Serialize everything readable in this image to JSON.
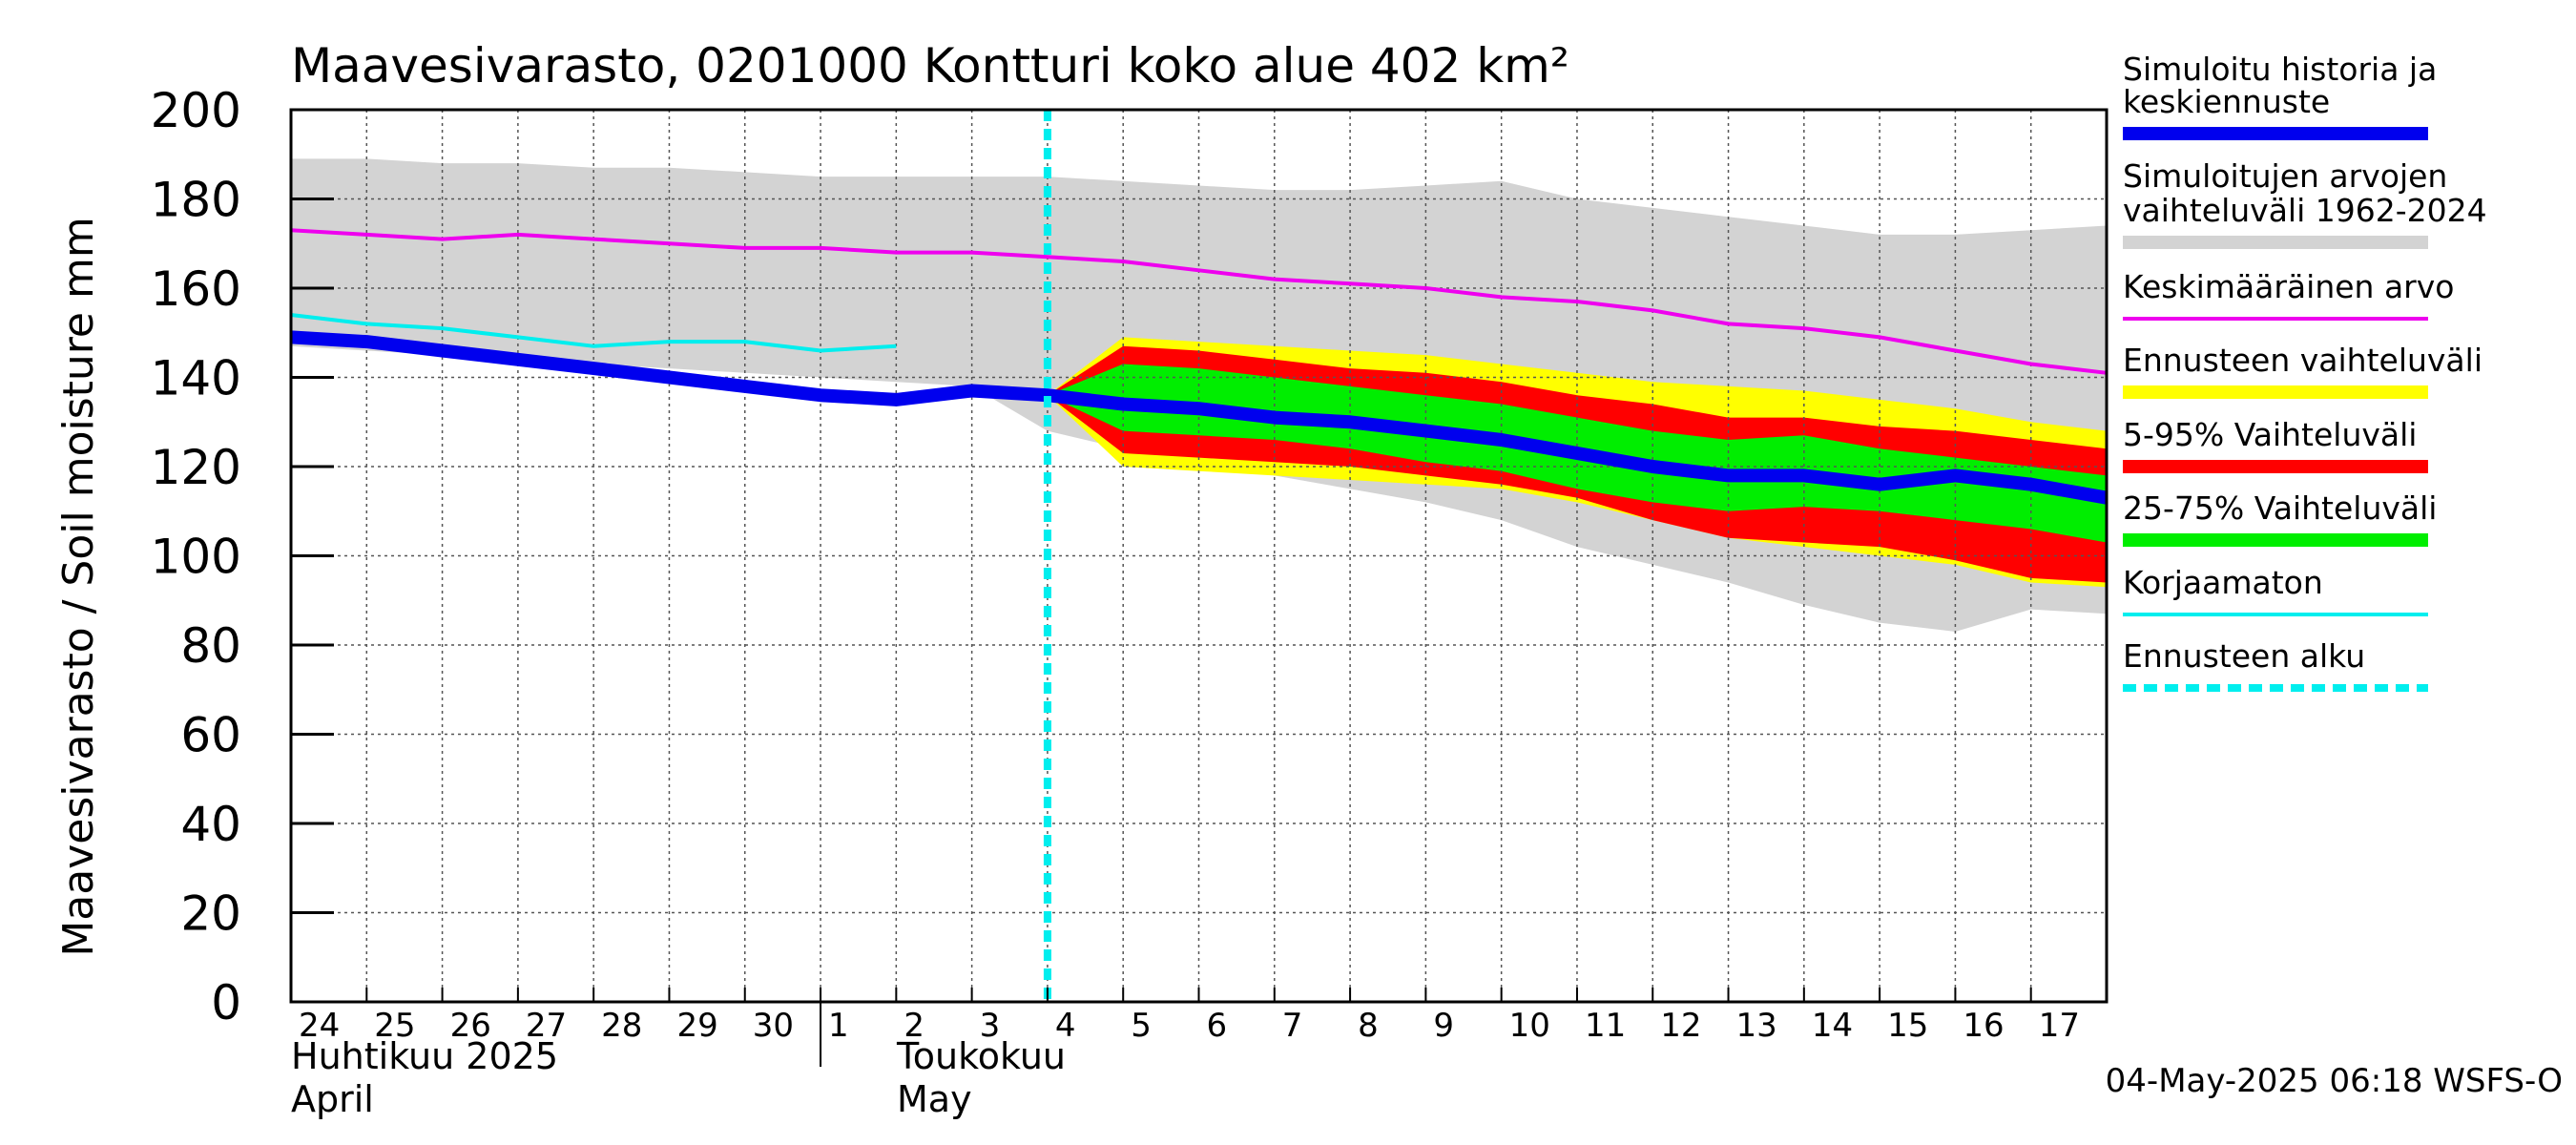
{
  "chart_data": {
    "type": "area",
    "title": "Maavesivarasto, 0201000 Kontturi koko alue 402 km²",
    "ylabel": "Maavesivarasto / Soil moisture   mm",
    "ylim": [
      0,
      200
    ],
    "y_ticks": [
      0,
      20,
      40,
      60,
      80,
      100,
      120,
      140,
      160,
      180,
      200
    ],
    "x_start_day": "Apr 24",
    "x_tick_labels": [
      "24",
      "25",
      "26",
      "27",
      "28",
      "29",
      "30",
      "1",
      "2",
      "3",
      "4",
      "5",
      "6",
      "7",
      "8",
      "9",
      "10",
      "11",
      "12",
      "13",
      "14",
      "15",
      "16",
      "17"
    ],
    "month_labels": {
      "april_fi": "Huhtikuu  2025",
      "april_en": "April",
      "may_fi": "Toukokuu",
      "may_en": "May"
    },
    "forecast_start_day": 10.0,
    "legend": [
      {
        "label": "Simuloitu historia ja keskiennuste",
        "color": "#0000ee",
        "style": "thick-line"
      },
      {
        "label": "Simuloitujen arvojen vaihteluväli 1962-2024",
        "color": "#d3d3d3",
        "style": "band"
      },
      {
        "label": "Keskimääräinen arvo",
        "color": "#ee00ee",
        "style": "line"
      },
      {
        "label": "Ennusteen vaihteluväli",
        "color": "#ffff00",
        "style": "band"
      },
      {
        "label": "5-95% Vaihteluväli",
        "color": "#ff0000",
        "style": "band"
      },
      {
        "label": "25-75% Vaihteluväli",
        "color": "#00ee00",
        "style": "band"
      },
      {
        "label": "Korjaamaton",
        "color": "#00eeee",
        "style": "line"
      },
      {
        "label": "Ennusteen alku",
        "color": "#00eeee",
        "style": "dashed"
      }
    ],
    "footer": "04-May-2025 06:18 WSFS-O",
    "series": {
      "historical_range": {
        "x": [
          0,
          1,
          2,
          3,
          4,
          5,
          6,
          7,
          8,
          9,
          10,
          11,
          12,
          13,
          14,
          15,
          16,
          17,
          18,
          19,
          20,
          21,
          22,
          23,
          24
        ],
        "upper": [
          189,
          189,
          188,
          188,
          187,
          187,
          186,
          185,
          185,
          185,
          185,
          184,
          183,
          182,
          182,
          183,
          184,
          180,
          178,
          176,
          174,
          172,
          172,
          173,
          174
        ],
        "lower": [
          147,
          146,
          145,
          144,
          143,
          142,
          141,
          140,
          139,
          138,
          128,
          124,
          121,
          118,
          115,
          112,
          108,
          102,
          98,
          94,
          89,
          85,
          83,
          88,
          87
        ]
      },
      "mean": {
        "x": [
          0,
          1,
          2,
          3,
          4,
          5,
          6,
          7,
          8,
          9,
          10,
          11,
          12,
          13,
          14,
          15,
          16,
          17,
          18,
          19,
          20,
          21,
          22,
          23,
          24
        ],
        "values": [
          173,
          172,
          171,
          172,
          171,
          170,
          169,
          169,
          168,
          168,
          167,
          166,
          164,
          162,
          161,
          160,
          158,
          157,
          155,
          152,
          151,
          149,
          146,
          143,
          141
        ]
      },
      "uncorrected": {
        "x": [
          0,
          1,
          2,
          3,
          4,
          5,
          6,
          7,
          8
        ],
        "values": [
          154,
          152,
          151,
          149,
          147,
          148,
          148,
          146,
          147
        ]
      },
      "median_forecast": {
        "x": [
          0,
          1,
          2,
          3,
          4,
          5,
          6,
          7,
          8,
          9,
          10,
          11,
          12,
          13,
          14,
          15,
          16,
          17,
          18,
          19,
          20,
          21,
          22,
          23,
          24
        ],
        "values": [
          149,
          148,
          146,
          144,
          142,
          140,
          138,
          136,
          135,
          137,
          136,
          134,
          133,
          131,
          130,
          128,
          126,
          123,
          120,
          118,
          118,
          116,
          118,
          116,
          113
        ]
      },
      "forecast_range": {
        "x": [
          10,
          11,
          12,
          13,
          14,
          15,
          16,
          17,
          18,
          19,
          20,
          21,
          22,
          23,
          24
        ],
        "upper": [
          136,
          149,
          148,
          147,
          146,
          145,
          143,
          141,
          139,
          138,
          137,
          135,
          133,
          130,
          128
        ],
        "lower": [
          136,
          120,
          119,
          118,
          117,
          116,
          115,
          112,
          108,
          104,
          102,
          100,
          98,
          94,
          93
        ]
      },
      "p5_95": {
        "x": [
          10,
          11,
          12,
          13,
          14,
          15,
          16,
          17,
          18,
          19,
          20,
          21,
          22,
          23,
          24
        ],
        "upper": [
          136,
          147,
          146,
          144,
          142,
          141,
          139,
          136,
          134,
          131,
          131,
          129,
          128,
          126,
          124
        ],
        "lower": [
          136,
          123,
          122,
          121,
          120,
          118,
          116,
          113,
          108,
          104,
          103,
          102,
          99,
          95,
          94
        ]
      },
      "p25_75": {
        "x": [
          10,
          11,
          12,
          13,
          14,
          15,
          16,
          17,
          18,
          19,
          20,
          21,
          22,
          23,
          24
        ],
        "upper": [
          136,
          143,
          142,
          140,
          138,
          136,
          134,
          131,
          128,
          126,
          127,
          124,
          122,
          120,
          118
        ],
        "lower": [
          136,
          128,
          127,
          126,
          124,
          121,
          119,
          115,
          112,
          110,
          111,
          110,
          108,
          106,
          103
        ]
      }
    }
  }
}
